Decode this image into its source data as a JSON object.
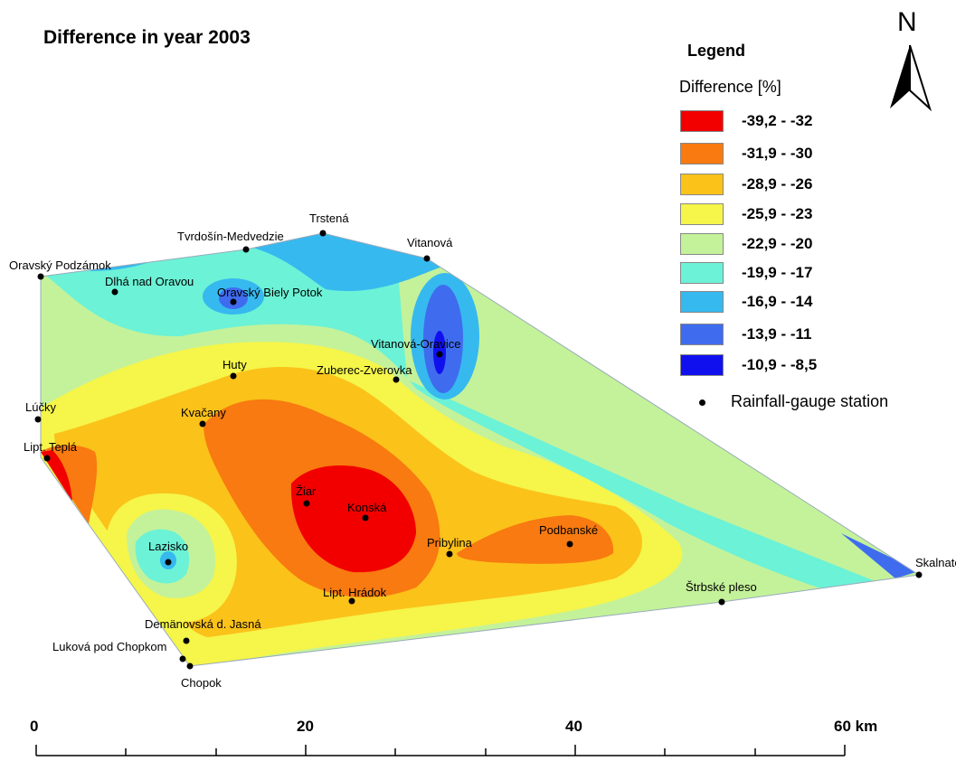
{
  "title": "Difference in year 2003",
  "legend": {
    "title": "Legend",
    "subtitle": "Difference [%]",
    "classes": [
      {
        "label": "-39,2 - -32",
        "color": "#f20000"
      },
      {
        "label": "-31,9 - -30",
        "color": "#f87a10"
      },
      {
        "label": "-28,9 - -26",
        "color": "#fbc21a"
      },
      {
        "label": "-25,9 - -23",
        "color": "#f5f54a"
      },
      {
        "label": "-22,9 - -20",
        "color": "#c4f29a"
      },
      {
        "label": "-19,9 - -17",
        "color": "#6cf2d6"
      },
      {
        "label": "-16,9 - -14",
        "color": "#36b9ef"
      },
      {
        "label": "-13,9 - -11",
        "color": "#3f6cef"
      },
      {
        "label": "-10,9 - -8,5",
        "color": "#1010ee"
      }
    ],
    "station_label": "Rainfall-gauge station"
  },
  "north": "N",
  "scale": {
    "labels": [
      "0",
      "20",
      "40",
      "60 km"
    ]
  },
  "stations": [
    {
      "name": "Trstená"
    },
    {
      "name": "Tvrdošín-Medvedzie"
    },
    {
      "name": "Vitanová"
    },
    {
      "name": "Oravský Podzámok"
    },
    {
      "name": "Dlhá nad Oravou"
    },
    {
      "name": "Oravský Biely Potok"
    },
    {
      "name": "Vitanová-Oravice"
    },
    {
      "name": "Huty"
    },
    {
      "name": "Zuberec-Zverovka"
    },
    {
      "name": "Lúčky"
    },
    {
      "name": "Kvačany"
    },
    {
      "name": "Lipt. Teplá"
    },
    {
      "name": "Žiar"
    },
    {
      "name": "Konská"
    },
    {
      "name": "Lazisko"
    },
    {
      "name": "Pribylina"
    },
    {
      "name": "Podbanské"
    },
    {
      "name": "Skalnaté pleso"
    },
    {
      "name": "Lipt. Hrádok"
    },
    {
      "name": "Štrbské pleso"
    },
    {
      "name": "Demänovská d. Jasná"
    },
    {
      "name": "Luková pod Chopkom"
    },
    {
      "name": "Chopok"
    }
  ]
}
